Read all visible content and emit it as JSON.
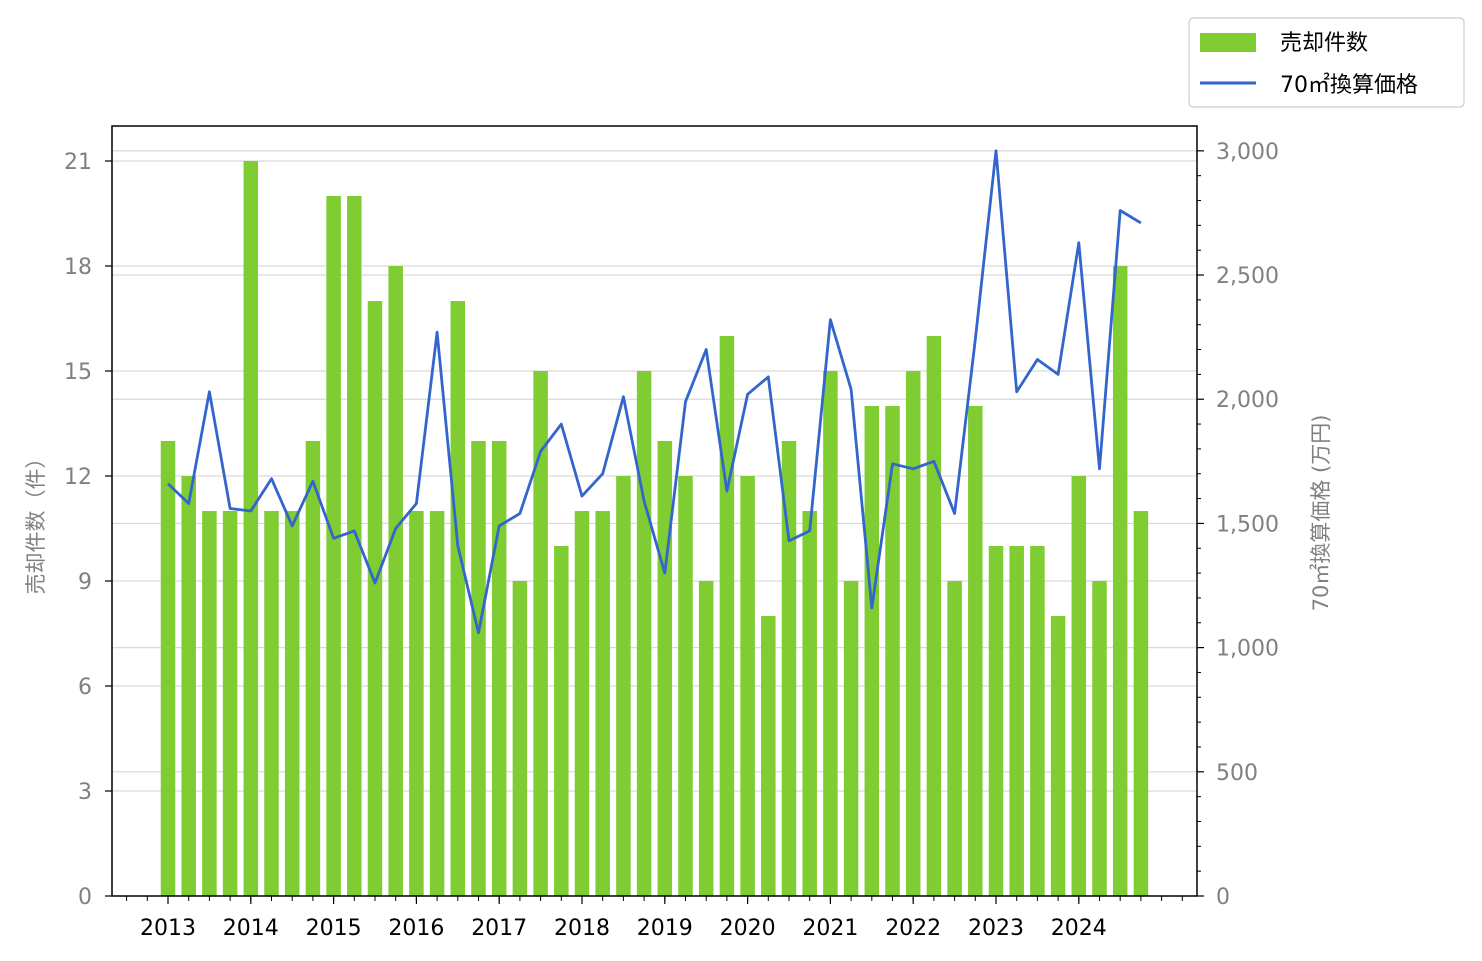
{
  "chart_data": {
    "type": "bar",
    "x": [
      "2013Q1",
      "2013Q2",
      "2013Q3",
      "2013Q4",
      "2014Q1",
      "2014Q2",
      "2014Q3",
      "2014Q4",
      "2015Q1",
      "2015Q2",
      "2015Q3",
      "2015Q4",
      "2016Q1",
      "2016Q2",
      "2016Q3",
      "2016Q4",
      "2017Q1",
      "2017Q2",
      "2017Q3",
      "2017Q4",
      "2018Q1",
      "2018Q2",
      "2018Q3",
      "2018Q4",
      "2019Q1",
      "2019Q2",
      "2019Q3",
      "2019Q4",
      "2020Q1",
      "2020Q2",
      "2020Q3",
      "2020Q4",
      "2021Q1",
      "2021Q2",
      "2021Q3",
      "2021Q4",
      "2022Q1",
      "2022Q2",
      "2022Q3",
      "2022Q4",
      "2023Q1",
      "2023Q2",
      "2023Q3",
      "2023Q4",
      "2024Q1",
      "2024Q2",
      "2024Q3",
      "2024Q4"
    ],
    "x_tick_labels": [
      "2013",
      "2014",
      "2015",
      "2016",
      "2017",
      "2018",
      "2019",
      "2020",
      "2021",
      "2022",
      "2023",
      "2024"
    ],
    "series": [
      {
        "name": "売却件数",
        "type": "bar",
        "axis": "left",
        "color": "#7fcc33",
        "values": [
          13,
          12,
          11,
          11,
          21,
          11,
          11,
          13,
          20,
          20,
          17,
          18,
          11,
          11,
          17,
          13,
          13,
          9,
          15,
          10,
          11,
          11,
          12,
          15,
          13,
          12,
          9,
          16,
          12,
          8,
          13,
          11,
          15,
          9,
          14,
          14,
          15,
          16,
          9,
          14,
          10,
          10,
          10,
          8,
          12,
          9,
          18,
          11
        ]
      },
      {
        "name": "70㎡換算価格",
        "type": "line",
        "axis": "right",
        "color": "#3366cc",
        "values": [
          1660,
          1580,
          2030,
          1560,
          1550,
          1680,
          1490,
          1670,
          1440,
          1470,
          1260,
          1480,
          1580,
          2270,
          1410,
          1060,
          1490,
          1540,
          1790,
          1900,
          1610,
          1700,
          2010,
          1590,
          1300,
          1990,
          2200,
          1630,
          2020,
          2090,
          1430,
          1470,
          2320,
          2040,
          1160,
          1740,
          1720,
          1750,
          1540,
          2240,
          3000,
          2030,
          2160,
          2100,
          2630,
          1720,
          2760,
          2710
        ]
      }
    ],
    "y_left": {
      "label": "売却件数（件）",
      "ylim": [
        0,
        22
      ],
      "ticks": [
        "0",
        "3",
        "6",
        "9",
        "12",
        "15",
        "18",
        "21"
      ],
      "tick_values": [
        0,
        3,
        6,
        9,
        12,
        15,
        18,
        21
      ]
    },
    "y_right": {
      "label": "70㎡換算価格 (万円)",
      "ylim": [
        0,
        3100
      ],
      "ticks": [
        "0",
        "500",
        "1,000",
        "1,500",
        "2,000",
        "2,500",
        "3,000"
      ],
      "tick_values": [
        0,
        500,
        1000,
        1500,
        2000,
        2500,
        3000
      ]
    },
    "grid": "horizontal",
    "legend": {
      "placement": "top-right",
      "entries": [
        "売却件数",
        "70㎡換算価格"
      ]
    }
  }
}
